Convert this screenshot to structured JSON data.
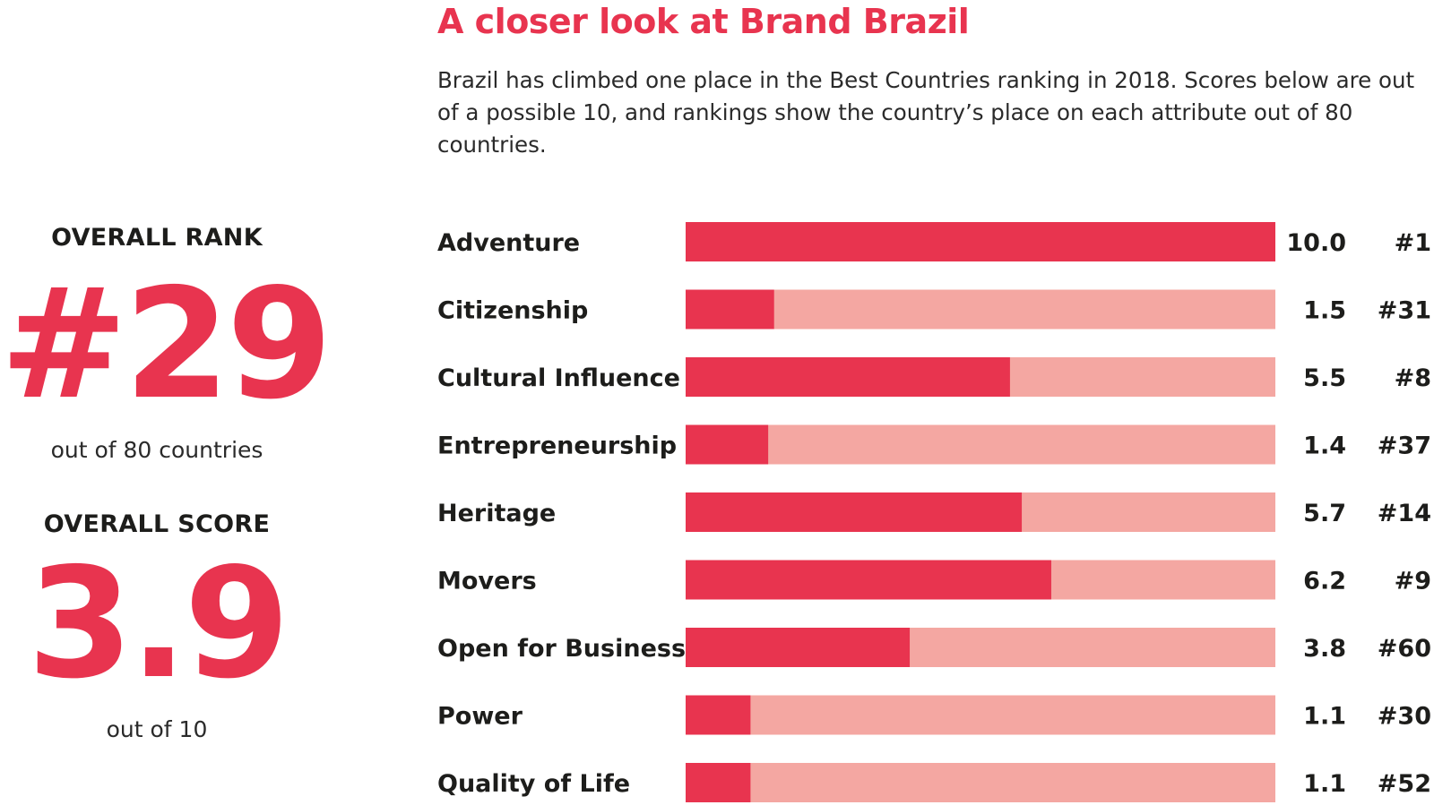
{
  "header": {
    "title": "A closer look at Brand Brazil",
    "description": "Brazil has climbed one place in the Best Countries ranking in 2018. Scores below are out of a possible 10, and rankings show the country’s place on each attribute out of 80 countries."
  },
  "overall": {
    "rank_label": "OVERALL RANK",
    "rank_value": "#29",
    "rank_sub": "out of 80 countries",
    "score_label": "OVERALL SCORE",
    "score_value": "3.9",
    "score_sub": "out of 10"
  },
  "colors": {
    "accent": "#e8344f",
    "track": "#f4a7a2",
    "text": "#1d1d1b"
  },
  "chart_data": {
    "type": "bar",
    "orientation": "horizontal",
    "title": "A closer look at Brand Brazil",
    "xlim": [
      0,
      10
    ],
    "grid": false,
    "categories": [
      "Adventure",
      "Citizenship",
      "Cultural Influence",
      "Entrepreneurship",
      "Heritage",
      "Movers",
      "Open for Business",
      "Power",
      "Quality of Life"
    ],
    "values": [
      10.0,
      1.5,
      5.5,
      1.4,
      5.7,
      6.2,
      3.8,
      1.1,
      1.1
    ],
    "value_labels": [
      "10.0",
      "1.5",
      "5.5",
      "1.4",
      "5.7",
      "6.2",
      "3.8",
      "1.1",
      "1.1"
    ],
    "ranks": [
      "#1",
      "#31",
      "#8",
      "#37",
      "#14",
      "#9",
      "#60",
      "#30",
      "#52"
    ]
  }
}
